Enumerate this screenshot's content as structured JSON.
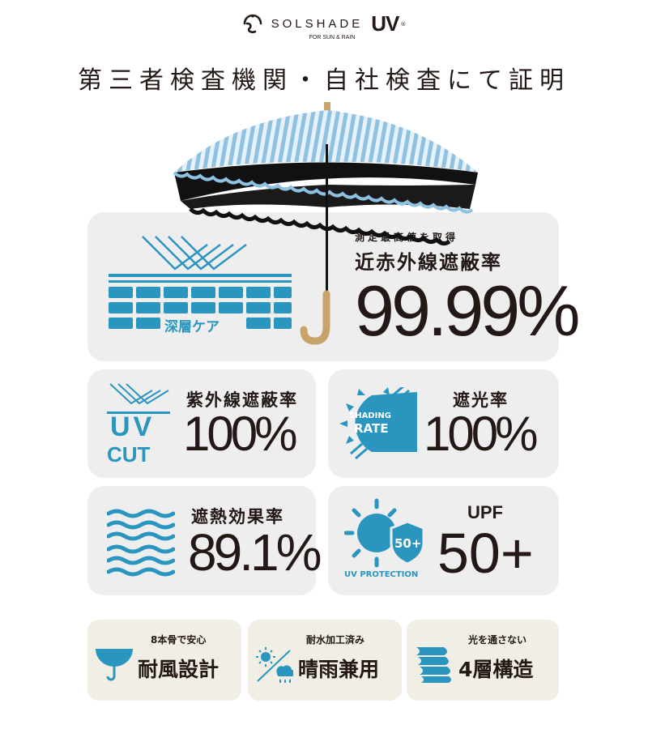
{
  "brand": {
    "name": "SOLSHADE",
    "mark": "UV",
    "registered": "®",
    "tagline": "FOR SUN & RAIN"
  },
  "headline": "第三者検査機関・自社検査にて証明",
  "colors": {
    "accent": "#2a96c0",
    "card": "#eeeeee",
    "feature_card": "#f1eee6",
    "text": "#231815"
  },
  "hero": {
    "note": "測定最高値を取得",
    "label": "近赤外線遮蔽率",
    "value": "99.99%",
    "icon_label": "深層ケア",
    "icon": "layered-shield-icon"
  },
  "stats": [
    {
      "label": "紫外線遮蔽率",
      "value": "100%",
      "icon": "uv-cut-icon",
      "icon_text": [
        "UV",
        "CUT"
      ]
    },
    {
      "label": "遮光率",
      "value": "100%",
      "icon": "shading-rate-icon",
      "icon_text": [
        "SHADING",
        "RATE"
      ]
    },
    {
      "label": "遮熱効果率",
      "value": "89.1%",
      "icon": "heat-waves-icon"
    },
    {
      "label": "UPF",
      "value": "50+",
      "icon": "uv-protection-icon",
      "icon_text": [
        "50+",
        "UV PROTECTION"
      ]
    }
  ],
  "features": [
    {
      "sub": "8本骨で安心",
      "main": "耐風設計",
      "icon": "umbrella-icon"
    },
    {
      "sub": "耐水加工済み",
      "main": "晴雨兼用",
      "icon": "sun-rain-icon"
    },
    {
      "sub": "光を通さない",
      "main": "4層構造",
      "icon": "layers-icon"
    }
  ]
}
